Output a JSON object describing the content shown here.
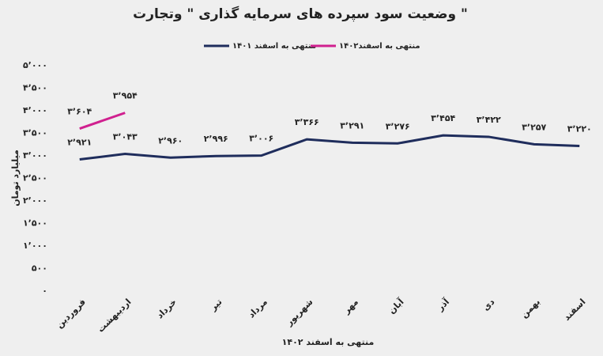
{
  "chart_data": {
    "type": "line",
    "title": "وضعیت سود سپرده های سرمایه گذاری \" وتجارت \"",
    "x_label": "منتهی به اسفند ۱۴۰۲",
    "y_label": "میلیارد تومان",
    "categories": [
      "فروردین",
      "اردیبهشت",
      "خرداد",
      "تیر",
      "مرداد",
      "شهریور",
      "مهر",
      "آبان",
      "آذر",
      "دی",
      "بهمن",
      "اسفند"
    ],
    "series": [
      {
        "name": "منتهی به اسفند ۱۴۰۱",
        "color": "#1f2d5c",
        "values": [
          2921,
          3043,
          2960,
          2996,
          3006,
          3366,
          3291,
          3276,
          3454,
          3422,
          3257,
          3220
        ],
        "value_labels": [
          "۲٬۹۲۱",
          "۳٬۰۴۳",
          "۲٬۹۶۰",
          "۲٬۹۹۶",
          "۳٬۰۰۶",
          "۳٬۳۶۶",
          "۳٬۲۹۱",
          "۳٬۲۷۶",
          "۳٬۴۵۴",
          "۳٬۴۲۲",
          "۳٬۲۵۷",
          "۳٬۲۲۰"
        ]
      },
      {
        "name": "منتهی به اسفند۱۴۰۲",
        "color": "#d0208f",
        "values": [
          3604,
          3954,
          null,
          null,
          null,
          null,
          null,
          null,
          null,
          null,
          null,
          null
        ],
        "value_labels": [
          "۳٬۶۰۴",
          "۳٬۹۵۴",
          null,
          null,
          null,
          null,
          null,
          null,
          null,
          null,
          null,
          null
        ]
      }
    ],
    "ylim": [
      0,
      5000
    ],
    "yticks": [
      {
        "value": 0,
        "label": "۰"
      },
      {
        "value": 500,
        "label": "۵۰۰"
      },
      {
        "value": 1000,
        "label": "۱٬۰۰۰"
      },
      {
        "value": 1500,
        "label": "۱٬۵۰۰"
      },
      {
        "value": 2000,
        "label": "۲٬۰۰۰"
      },
      {
        "value": 2500,
        "label": "۲٬۵۰۰"
      },
      {
        "value": 3000,
        "label": "۳٬۰۰۰"
      },
      {
        "value": 3500,
        "label": "۳٬۵۰۰"
      },
      {
        "value": 4000,
        "label": "۴٬۰۰۰"
      },
      {
        "value": 4500,
        "label": "۴٬۵۰۰"
      },
      {
        "value": 5000,
        "label": "۵٬۰۰۰"
      }
    ],
    "grid": false,
    "legend": "top"
  }
}
